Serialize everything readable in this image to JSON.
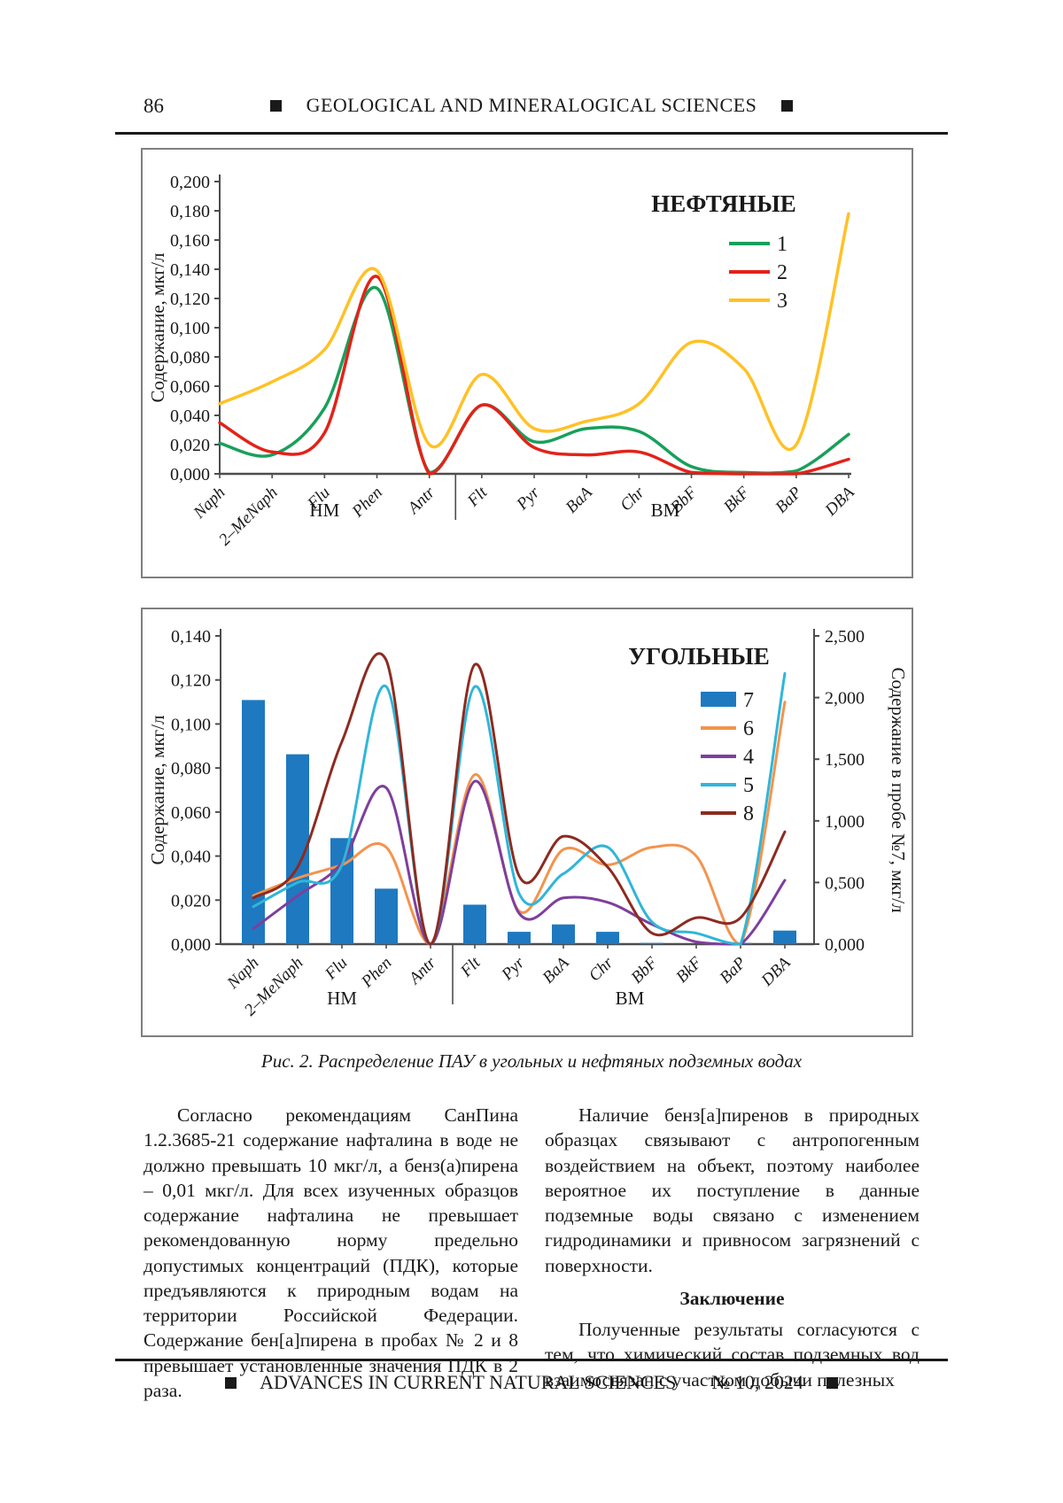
{
  "page": {
    "number": "86",
    "header_title": "GEOLOGICAL AND MINERALOGICAL SCIENCES",
    "footer_title": "ADVANCES IN CURRENT NATURAL SCIENCES",
    "footer_issue": "№ 10, 2024"
  },
  "figure": {
    "caption": "Рис. 2. Распределение ПАУ в угольных и нефтяных подземных водах"
  },
  "chart_data": [
    {
      "type": "line",
      "title": "НЕФТЯНЫЕ",
      "ylabel": "Содержание, мкг/л",
      "ylim": [
        0,
        0.2
      ],
      "ytick_step": 0.02,
      "grid": false,
      "legend_position": "top-right-inside",
      "categories": [
        "Naph",
        "2–MeNaph",
        "Flu",
        "Phen",
        "Antr",
        "Flt",
        "Pyr",
        "BaA",
        "Chr",
        "BbF",
        "BkF",
        "BaP",
        "DBA"
      ],
      "group_labels": [
        {
          "label": "НМ",
          "from": 0,
          "to": 4
        },
        {
          "label": "ВМ",
          "from": 5,
          "to": 12
        }
      ],
      "divider_between": [
        4,
        5
      ],
      "series": [
        {
          "name": "1",
          "color": "#18A05A",
          "values": [
            0.021,
            0.013,
            0.045,
            0.127,
            0.001,
            0.047,
            0.022,
            0.031,
            0.029,
            0.005,
            0.001,
            0.002,
            0.027
          ]
        },
        {
          "name": "2",
          "color": "#E32219",
          "values": [
            0.035,
            0.015,
            0.028,
            0.135,
            0.0,
            0.047,
            0.018,
            0.013,
            0.015,
            0.001,
            0.0,
            0.0,
            0.01
          ]
        },
        {
          "name": "3",
          "color": "#FFC125",
          "values": [
            0.048,
            0.063,
            0.085,
            0.139,
            0.02,
            0.068,
            0.031,
            0.036,
            0.048,
            0.09,
            0.072,
            0.02,
            0.178
          ]
        }
      ]
    },
    {
      "type": "bar+line",
      "title": "УГОЛЬНЫЕ",
      "ylabel_left": "Содержание, мкг/л",
      "ylabel_right": "Содержание в пробе №7, мкг/л",
      "ylim_left": [
        0,
        0.14
      ],
      "ytick_step_left": 0.02,
      "ylim_right": [
        0,
        2.5
      ],
      "ytick_step_right": 0.5,
      "grid": false,
      "legend_position": "top-right-inside",
      "categories": [
        "Naph",
        "2–MeNaph",
        "Flu",
        "Phen",
        "Antr",
        "Flt",
        "Pyr",
        "BaA",
        "Chr",
        "BbF",
        "BkF",
        "BaP",
        "DBA"
      ],
      "group_labels": [
        {
          "label": "НМ",
          "from": 0,
          "to": 4
        },
        {
          "label": "ВМ",
          "from": 5,
          "to": 12
        }
      ],
      "divider_between": [
        4,
        5
      ],
      "bar_series": {
        "name": "7",
        "color": "#1E79C0",
        "axis": "right",
        "values": [
          1.98,
          1.54,
          0.86,
          0.45,
          0.0,
          0.32,
          0.1,
          0.16,
          0.1,
          0.01,
          0.0,
          0.01,
          0.11
        ]
      },
      "line_series": [
        {
          "name": "6",
          "color": "#F2944E",
          "values": [
            0.022,
            0.03,
            0.036,
            0.044,
            0.0,
            0.077,
            0.015,
            0.043,
            0.036,
            0.044,
            0.04,
            0.0,
            0.11
          ]
        },
        {
          "name": "4",
          "color": "#7E3F9D",
          "values": [
            0.007,
            0.022,
            0.037,
            0.071,
            0.0,
            0.074,
            0.014,
            0.021,
            0.019,
            0.009,
            0.001,
            0.0,
            0.029
          ]
        },
        {
          "name": "5",
          "color": "#2FB6D9",
          "values": [
            0.017,
            0.028,
            0.036,
            0.117,
            0.0,
            0.117,
            0.023,
            0.032,
            0.044,
            0.01,
            0.005,
            0.0,
            0.123
          ]
        },
        {
          "name": "8",
          "color": "#8C2B20",
          "values": [
            0.021,
            0.035,
            0.092,
            0.129,
            0.0,
            0.127,
            0.031,
            0.049,
            0.035,
            0.005,
            0.012,
            0.012,
            0.051
          ]
        }
      ],
      "legend_order": [
        "7",
        "6",
        "4",
        "5",
        "8"
      ]
    }
  ],
  "body": {
    "left_column": {
      "p1": "Согласно рекомендациям СанПина 1.2.3685-21 содержание нафталина в воде не должно превышать 10 мкг/л, а бенз(а)пирена – 0,01 мкг/л. Для всех изученных образцов содержание нафталина не превышает рекомендованную норму предельно допустимых концентраций (ПДК), которые предъявляются к природным водам на территории Российской Федерации. Содержание бен[а]пирена в пробах № 2 и 8 превышает установленные значения ПДК в 2 раза."
    },
    "right_column": {
      "p1": "Наличие бенз[а]пиренов в природных образцах связывают с антропогенным воздействием на объект, поэтому наиболее вероятное их поступление в данные подземные воды связано с изменением гидродинамики и привносом загрязнений с поверхности.",
      "heading": "Заключение",
      "p2": "Полученные результаты согласуются с тем, что химический состав подземных вод взаимосвязан с участком добычи полезных"
    }
  }
}
